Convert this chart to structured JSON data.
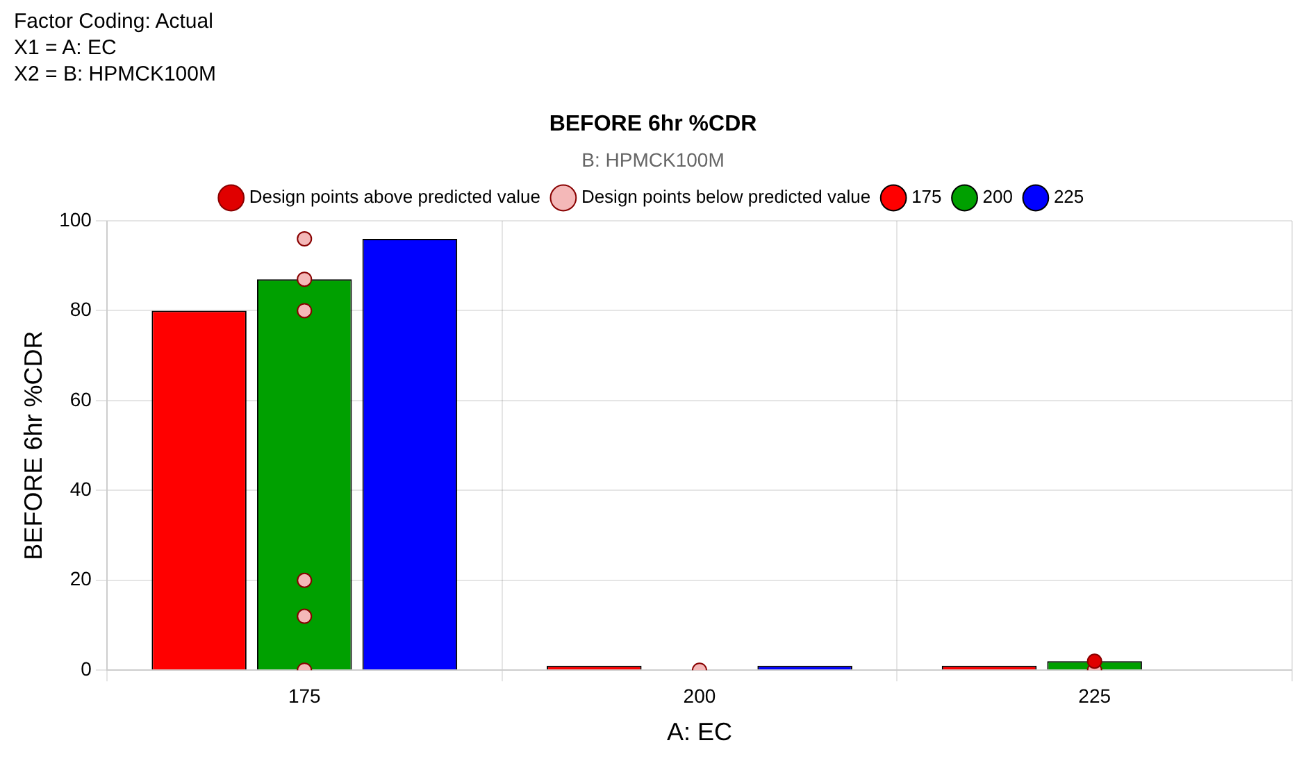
{
  "chart_data": {
    "type": "bar",
    "title": "BEFORE 6hr %CDR",
    "annotations": [
      "Factor Coding: Actual",
      "X1 = A: EC",
      "X2 = B: HPMCK100M"
    ],
    "categories": [
      "175",
      "200",
      "225"
    ],
    "xlabel": "A: EC",
    "ylabel": "BEFORE 6hr %CDR",
    "legend_title": "B: HPMCK100M",
    "series": [
      {
        "name": "175",
        "color": "#ff0000",
        "values": [
          80,
          1,
          1
        ]
      },
      {
        "name": "200",
        "color": "#00a000",
        "values": [
          87,
          null,
          2
        ]
      },
      {
        "name": "225",
        "color": "#0000ff",
        "values": [
          96,
          1,
          null
        ]
      },
      {
        "name": "Design points above predicted value",
        "type": "scatter",
        "color": "#e00000",
        "x": [
          "225"
        ],
        "values": [
          2
        ]
      },
      {
        "name": "Design points below predicted value",
        "type": "scatter",
        "color": "#f4b8b8",
        "x": [
          "175",
          "175",
          "175",
          "175",
          "175",
          "175",
          "200",
          "225"
        ],
        "values": [
          96,
          87,
          12,
          80,
          20,
          0,
          0,
          0
        ]
      }
    ],
    "ylim": [
      0,
      100
    ],
    "yticks": [
      0,
      20,
      40,
      60,
      80,
      100
    ],
    "grid": true,
    "legend": "top",
    "marker": "circle"
  }
}
